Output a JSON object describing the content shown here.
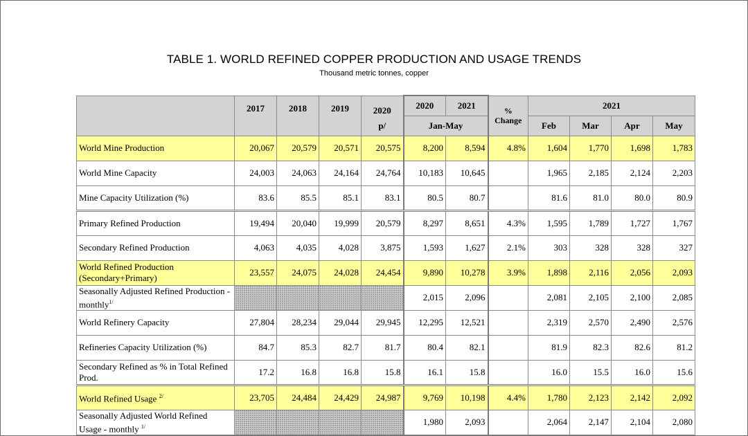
{
  "title": "TABLE 1. WORLD REFINED COPPER PRODUCTION AND USAGE TRENDS",
  "subtitle": "Thousand metric tonnes, copper",
  "header": {
    "years": [
      "2017",
      "2018",
      "2019",
      "2020"
    ],
    "year_2020_note": "p/",
    "ytd_years": [
      "2020",
      "2021"
    ],
    "ytd_period": "Jan-May",
    "pct_line1": "%",
    "pct_line2": "Change",
    "months_year": "2021",
    "months": [
      "Feb",
      "Mar",
      "Apr",
      "May"
    ]
  },
  "rows": [
    {
      "label": "World Mine Production",
      "vals": [
        "20,067",
        "20,579",
        "20,571",
        "20,575"
      ],
      "ytd": [
        "8,200",
        "8,594"
      ],
      "pct": "4.8%",
      "months": [
        "1,604",
        "1,770",
        "1,698",
        "1,783"
      ]
    },
    {
      "label": "World Mine Capacity",
      "vals": [
        "24,003",
        "24,063",
        "24,164",
        "24,764"
      ],
      "ytd": [
        "10,183",
        "10,645"
      ],
      "pct": "",
      "months": [
        "1,965",
        "2,185",
        "2,124",
        "2,203"
      ]
    },
    {
      "label": "Mine Capacity Utilization (%)",
      "vals": [
        "83.6",
        "85.5",
        "85.1",
        "83.1"
      ],
      "ytd": [
        "80.5",
        "80.7"
      ],
      "pct": "",
      "months": [
        "81.6",
        "81.0",
        "80.0",
        "80.9"
      ]
    },
    {
      "label": "Primary Refined Production",
      "vals": [
        "19,494",
        "20,040",
        "19,999",
        "20,579"
      ],
      "ytd": [
        "8,297",
        "8,651"
      ],
      "pct": "4.3%",
      "months": [
        "1,595",
        "1,789",
        "1,727",
        "1,767"
      ]
    },
    {
      "label": "Secondary Refined Production",
      "vals": [
        "4,063",
        "4,035",
        "4,028",
        "3,875"
      ],
      "ytd": [
        "1,593",
        "1,627"
      ],
      "pct": "2.1%",
      "months": [
        "303",
        "328",
        "328",
        "327"
      ]
    },
    {
      "label": "World Refined Production (Secondary+Primary)",
      "vals": [
        "23,557",
        "24,075",
        "24,028",
        "24,454"
      ],
      "ytd": [
        "9,890",
        "10,278"
      ],
      "pct": "3.9%",
      "months": [
        "1,898",
        "2,116",
        "2,056",
        "2,093"
      ]
    },
    {
      "label": "Seasonally Adjusted Refined Production - monthly",
      "note": "1/",
      "vals": [
        "",
        "",
        "",
        ""
      ],
      "ytd": [
        "2,015",
        "2,096"
      ],
      "pct": "",
      "months": [
        "2,081",
        "2,105",
        "2,100",
        "2,085"
      ]
    },
    {
      "label": "World Refinery Capacity",
      "vals": [
        "27,804",
        "28,234",
        "29,044",
        "29,945"
      ],
      "ytd": [
        "12,295",
        "12,521"
      ],
      "pct": "",
      "months": [
        "2,319",
        "2,570",
        "2,490",
        "2,576"
      ]
    },
    {
      "label": "Refineries Capacity Utilization (%)",
      "vals": [
        "84.7",
        "85.3",
        "82.7",
        "81.7"
      ],
      "ytd": [
        "80.4",
        "82.1"
      ],
      "pct": "",
      "months": [
        "81.9",
        "82.3",
        "82.6",
        "81.2"
      ]
    },
    {
      "label": "Secondary Refined as % in Total Refined Prod.",
      "vals": [
        "17.2",
        "16.8",
        "16.8",
        "15.8"
      ],
      "ytd": [
        "16.1",
        "15.8"
      ],
      "pct": "",
      "months": [
        "16.0",
        "15.5",
        "16.0",
        "15.6"
      ]
    },
    {
      "label": "World Refined Usage",
      "note": "2/",
      "vals": [
        "23,705",
        "24,484",
        "24,429",
        "24,987"
      ],
      "ytd": [
        "9,769",
        "10,198"
      ],
      "pct": "4.4%",
      "months": [
        "1,780",
        "2,123",
        "2,142",
        "2,092"
      ]
    },
    {
      "label": "Seasonally Adjusted World Refined Usage - monthly",
      "note": "1/",
      "vals": [
        "",
        "",
        "",
        ""
      ],
      "ytd": [
        "1,980",
        "2,093"
      ],
      "pct": "",
      "months": [
        "2,064",
        "2,147",
        "2,104",
        "2,080"
      ]
    }
  ],
  "highlight_color": "#ffff99",
  "header_color": "#d3d3d3"
}
